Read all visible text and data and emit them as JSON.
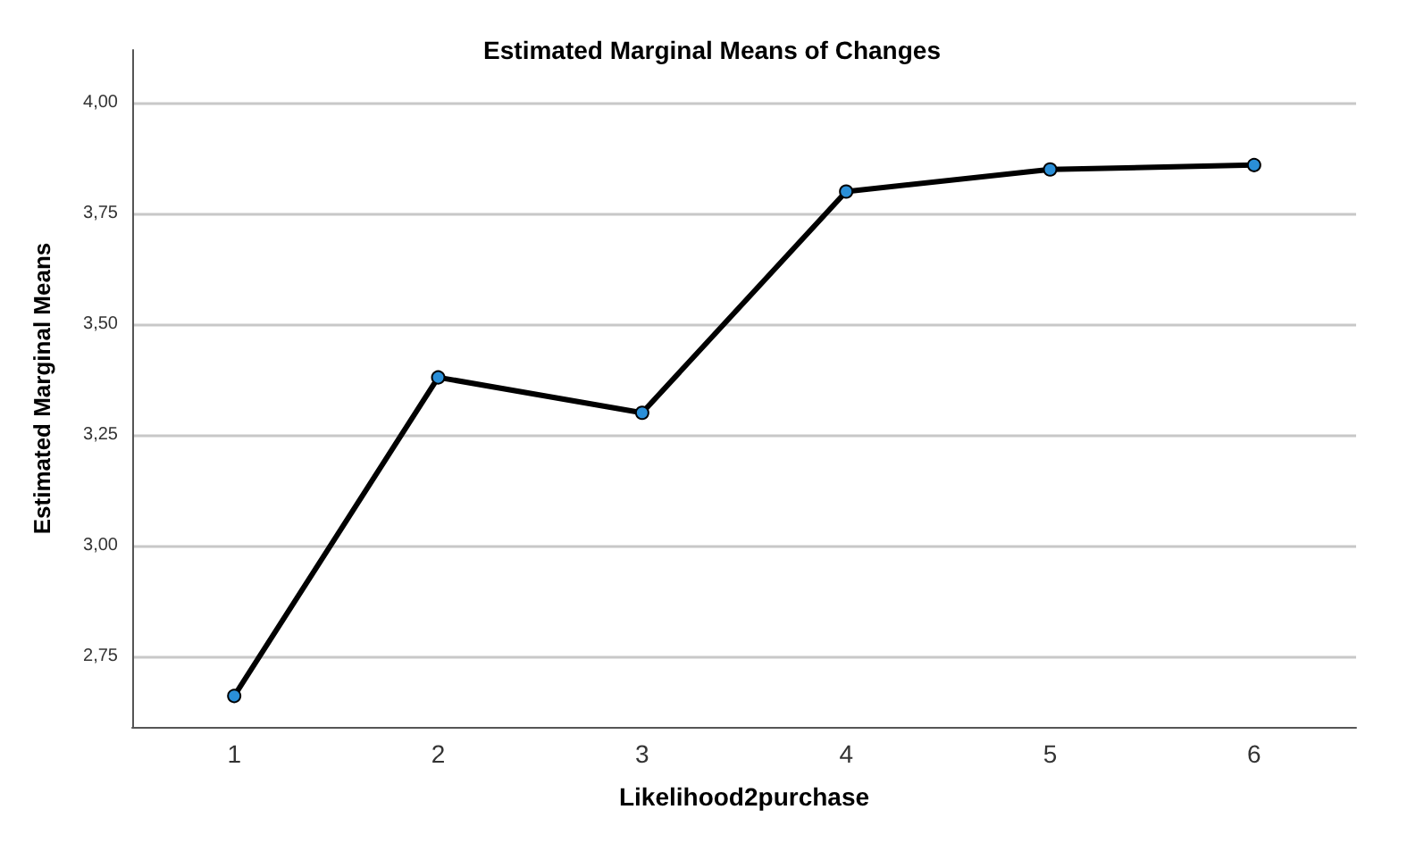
{
  "chart_data": {
    "type": "line",
    "title": "Estimated Marginal Means of Changes",
    "xlabel": "Likelihood2purchase",
    "ylabel": "Estimated Marginal Means",
    "categories": [
      "1",
      "2",
      "3",
      "4",
      "5",
      "6"
    ],
    "series": [
      {
        "color": "#000000",
        "values": [
          2.66,
          3.38,
          3.3,
          3.8,
          3.85,
          3.86
        ]
      }
    ],
    "ylim": [
      2.59,
      4.12
    ],
    "yticks": [
      {
        "value": 2.75,
        "label": "2,75"
      },
      {
        "value": 3.0,
        "label": "3,00"
      },
      {
        "value": 3.25,
        "label": "3,25"
      },
      {
        "value": 3.5,
        "label": "3,50"
      },
      {
        "value": 3.75,
        "label": "3,75"
      },
      {
        "value": 4.0,
        "label": "4,00"
      }
    ],
    "grid": "y",
    "marker": "circle",
    "line_style": "solid"
  }
}
